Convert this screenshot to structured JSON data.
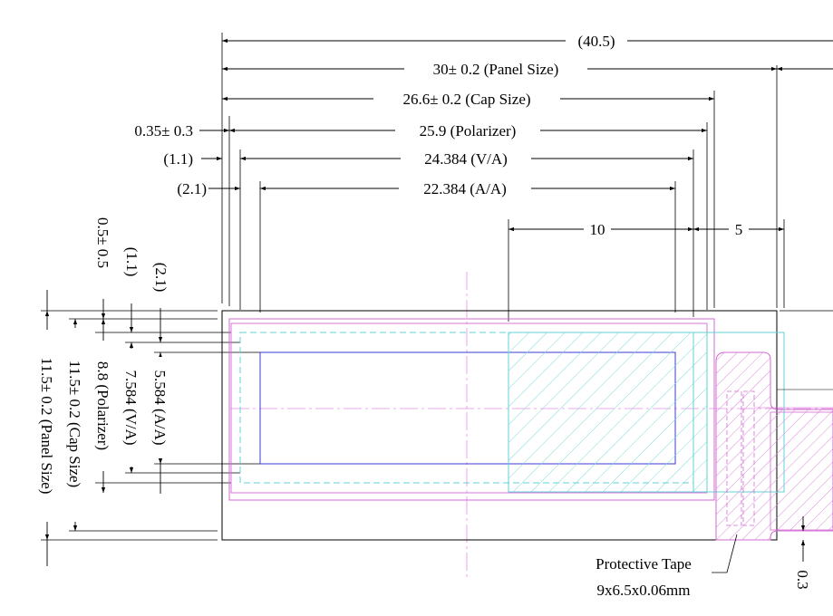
{
  "colors": {
    "outline": "#000000",
    "dim_line": "#000000",
    "magenta": "#d36bd3",
    "cyan": "#5fd3d3",
    "blue": "#3b3bd6",
    "centerline": "#e07ae0"
  },
  "horizontal_dims": {
    "overall": "(40.5)",
    "panel": "30± 0.2 (Panel Size)",
    "cap": "26.6± 0.2 (Cap Size)",
    "pol_offset": "0.35± 0.3",
    "polarizer": "25.9 (Polarizer)",
    "va_offset": "(1.1)",
    "va": "24.384 (V/A)",
    "aa_offset": "(2.1)",
    "aa": "22.384 (A/A)",
    "ten": "10",
    "five": "5"
  },
  "vertical_dims": {
    "pol_offset": "0.5± 0.5",
    "va_offset": "(1.1)",
    "aa_offset": "(2.1)",
    "panel": "11.5± 0.2 (Panel Size)",
    "cap": "11.5± 0.2 (Cap Size)",
    "polarizer": "8.8 (Polarizer)",
    "va": "7.584 (V/A)",
    "aa": "5.584 (A/A)",
    "gap": "0.3"
  },
  "callout": {
    "line1": "Protective Tape",
    "line2": "9x6.5x0.06mm"
  }
}
